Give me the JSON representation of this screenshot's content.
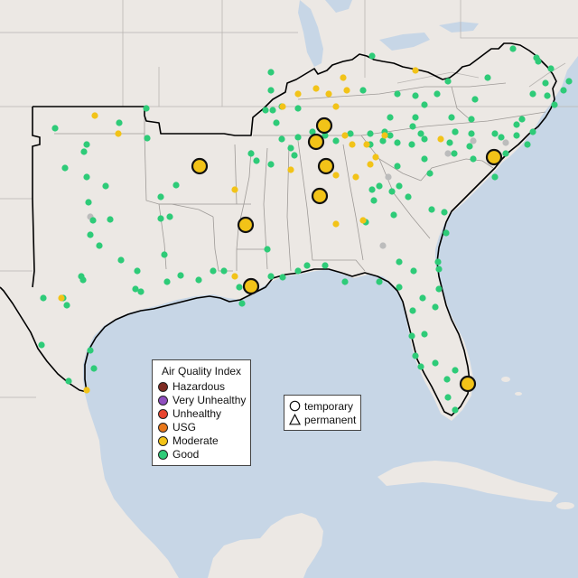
{
  "legend": {
    "title": "Air Quality Index",
    "categories": [
      {
        "label": "Hazardous",
        "color": "#7e2b22"
      },
      {
        "label": "Very Unhealthy",
        "color": "#8f4fbf"
      },
      {
        "label": "Unhealthy",
        "color": "#e8452f"
      },
      {
        "label": "USG",
        "color": "#e8771a"
      },
      {
        "label": "Moderate",
        "color": "#f2c318"
      },
      {
        "label": "Good",
        "color": "#2ecb78"
      }
    ]
  },
  "shape_legend": {
    "items": [
      {
        "label": "temporary",
        "icon": "circle-outline-icon"
      },
      {
        "label": "permanent",
        "icon": "triangle-outline-icon"
      }
    ]
  },
  "colors": {
    "water": "#c7d6e6",
    "land": "#ece8e4",
    "region_outline": "#000000",
    "no_data": "#bcbcbc"
  }
}
